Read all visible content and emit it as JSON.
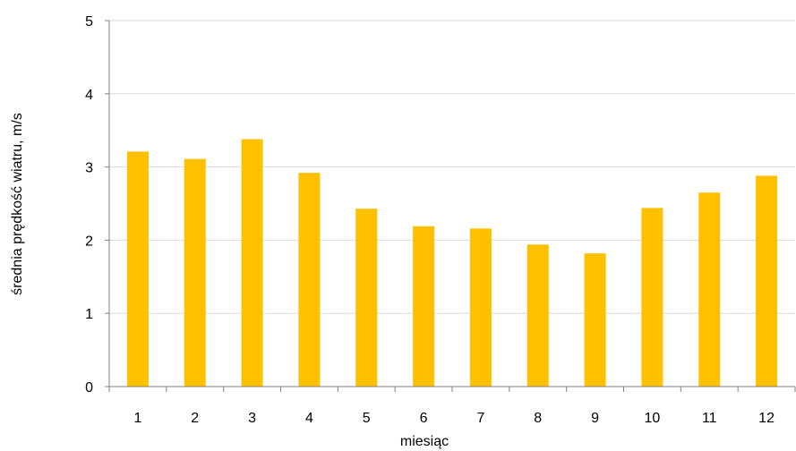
{
  "chart_data": {
    "type": "bar",
    "title": "",
    "xlabel": "miesiąc",
    "ylabel": "średnia prędkość wiatru, m/s",
    "categories": [
      "1",
      "2",
      "3",
      "4",
      "5",
      "6",
      "7",
      "8",
      "9",
      "10",
      "11",
      "12"
    ],
    "series": [
      {
        "values": [
          3.21,
          3.11,
          3.38,
          2.92,
          2.43,
          2.19,
          2.16,
          1.94,
          1.82,
          2.44,
          2.65,
          2.88
        ]
      }
    ],
    "ylim": [
      0,
      5
    ],
    "yticks": [
      "0",
      "1",
      "2",
      "3",
      "4",
      "5"
    ],
    "grid": true,
    "legend": "none",
    "colors": {
      "bar": "#FFC000",
      "grid": "#D9D9D9",
      "axis": "#808080"
    }
  }
}
